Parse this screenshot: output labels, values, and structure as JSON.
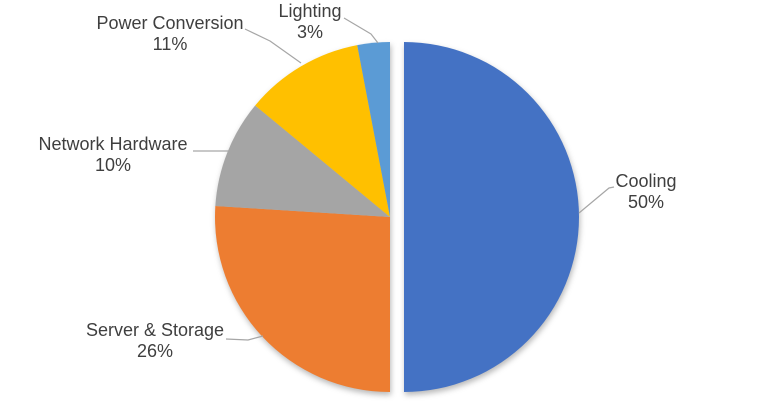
{
  "chart_data": {
    "type": "pie",
    "title": "",
    "legend": "none",
    "labels_style": "outside-with-leader-lines",
    "background_color": "#FFFFFF",
    "label_text_color": "#3F3F3F",
    "leader_line_color": "#A6A6A6",
    "segments": [
      {
        "label": "Cooling",
        "value": 50,
        "pct_label": "50%",
        "color": "#4472C4",
        "exploded": true
      },
      {
        "label": "Server & Storage",
        "value": 26,
        "pct_label": "26%",
        "color": "#ED7D31",
        "exploded": false
      },
      {
        "label": "Network Hardware",
        "value": 10,
        "pct_label": "10%",
        "color": "#A5A5A5",
        "exploded": false
      },
      {
        "label": "Power Conversion",
        "value": 11,
        "pct_label": "11%",
        "color": "#FFC000",
        "exploded": false
      },
      {
        "label": "Lighting",
        "value": 3,
        "pct_label": "3%",
        "color": "#5B9BD5",
        "exploded": false
      }
    ]
  }
}
